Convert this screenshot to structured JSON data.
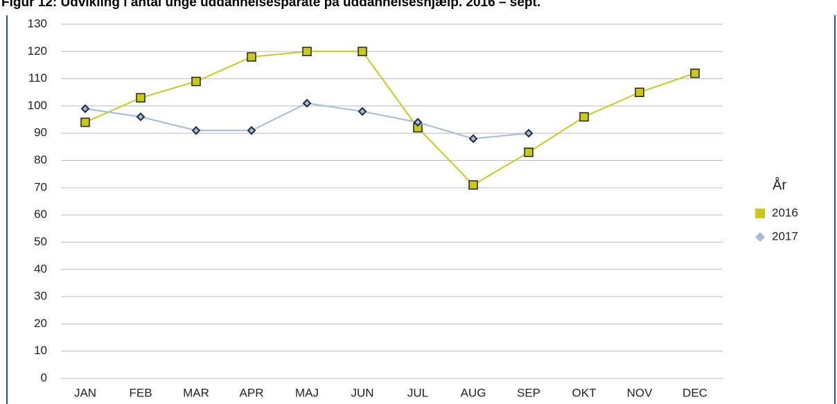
{
  "chart_data": {
    "type": "line",
    "title": "Figur 12: Udvikling i antal unge uddannelsesparate på uddannelseshjælp. 2016 – sept.",
    "categories": [
      "JAN",
      "FEB",
      "MAR",
      "APR",
      "MAJ",
      "JUN",
      "JUL",
      "AUG",
      "SEP",
      "OKT",
      "NOV",
      "DEC"
    ],
    "legend_title": "År",
    "legend_position": "right",
    "series": [
      {
        "name": "2016",
        "color": "#c9c91a",
        "values": [
          94,
          103,
          109,
          118,
          120,
          120,
          92,
          71,
          83,
          96,
          105,
          112
        ]
      },
      {
        "name": "2017",
        "color": "#a3bcd9",
        "values": [
          99,
          96,
          91,
          91,
          101,
          98,
          94,
          88,
          90,
          null,
          null,
          null
        ]
      }
    ],
    "ylim": [
      0,
      130
    ],
    "yticks": [
      0,
      10,
      20,
      30,
      40,
      50,
      60,
      70,
      80,
      90,
      100,
      110,
      120,
      130
    ],
    "grid": true
  }
}
